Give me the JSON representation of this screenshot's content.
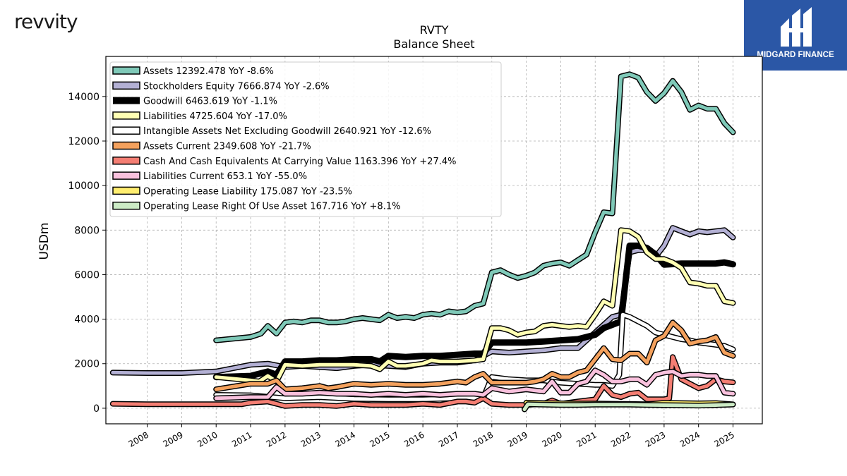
{
  "brand": {
    "left_logo_text": "revvity",
    "right_logo_text": "MIDGARD FINANCE",
    "right_logo_bg": "#2b57a6"
  },
  "chart_data": {
    "type": "line",
    "title": "RVTY",
    "subtitle": "Balance  Sheet",
    "ylabel": "USDm",
    "xlabel": "",
    "ylim": [
      -700,
      15800
    ],
    "xlim": [
      2006.8,
      2025.85
    ],
    "yticks": [
      0,
      2000,
      4000,
      6000,
      8000,
      10000,
      12000,
      14000
    ],
    "xticks": [
      2008,
      2009,
      2010,
      2011,
      2012,
      2013,
      2014,
      2015,
      2016,
      2017,
      2018,
      2019,
      2020,
      2021,
      2022,
      2023,
      2024,
      2025
    ],
    "grid": true,
    "legend_position": "top-left",
    "series": [
      {
        "name": "Assets",
        "legend": "Assets  12392.478 YoY -8.6%",
        "color": "#7fc9b8",
        "width": 5,
        "x": [
          2010.0,
          2011.0,
          2011.3,
          2011.5,
          2011.75,
          2012.0,
          2012.25,
          2012.5,
          2012.75,
          2013.0,
          2013.25,
          2013.5,
          2013.75,
          2014.0,
          2014.25,
          2014.5,
          2014.75,
          2015.0,
          2015.25,
          2015.5,
          2015.75,
          2016.0,
          2016.25,
          2016.5,
          2016.75,
          2017.0,
          2017.25,
          2017.5,
          2017.75,
          2018.0,
          2018.25,
          2018.5,
          2018.75,
          2019.0,
          2019.25,
          2019.5,
          2019.75,
          2020.0,
          2020.25,
          2020.5,
          2020.75,
          2021.0,
          2021.25,
          2021.5,
          2021.75,
          2022.0,
          2022.25,
          2022.5,
          2022.75,
          2023.0,
          2023.25,
          2023.5,
          2023.75,
          2024.0,
          2024.25,
          2024.5,
          2024.75,
          2025.0
        ],
        "y": [
          3050,
          3200,
          3350,
          3700,
          3350,
          3850,
          3900,
          3850,
          3950,
          3950,
          3850,
          3850,
          3900,
          4000,
          4050,
          4000,
          3950,
          4200,
          4050,
          4100,
          4050,
          4200,
          4250,
          4200,
          4350,
          4300,
          4350,
          4600,
          4700,
          6100,
          6200,
          6000,
          5850,
          5950,
          6100,
          6400,
          6500,
          6550,
          6400,
          6650,
          6900,
          7900,
          8800,
          8750,
          14900,
          15000,
          14850,
          14200,
          13800,
          14150,
          14700,
          14200,
          13400,
          13600,
          13450,
          13450,
          12800,
          12392
        ]
      },
      {
        "name": "Stockholders Equity",
        "legend": "Stockholders Equity  7666.874 YoY -2.6%",
        "color": "#b3b0d4",
        "width": 5,
        "x": [
          2007.0,
          2008.0,
          2009.0,
          2010.0,
          2011.0,
          2011.5,
          2012.0,
          2012.5,
          2013.0,
          2013.5,
          2014.0,
          2014.5,
          2015.0,
          2015.5,
          2016.0,
          2016.5,
          2017.0,
          2017.5,
          2018.0,
          2018.5,
          2019.0,
          2019.5,
          2020.0,
          2020.5,
          2021.0,
          2021.5,
          2021.75,
          2022.0,
          2022.25,
          2022.5,
          2022.75,
          2023.0,
          2023.25,
          2023.5,
          2023.75,
          2024.0,
          2024.25,
          2024.5,
          2024.75,
          2025.0
        ],
        "y": [
          1600,
          1580,
          1580,
          1650,
          1950,
          2000,
          1850,
          1900,
          1850,
          1800,
          1900,
          1950,
          1900,
          1850,
          2000,
          2050,
          2050,
          2150,
          2550,
          2500,
          2550,
          2600,
          2700,
          2700,
          3400,
          4100,
          4200,
          7000,
          7100,
          7100,
          6800,
          7300,
          8100,
          7950,
          7800,
          7950,
          7900,
          7950,
          8000,
          7666
        ]
      },
      {
        "name": "Goodwill",
        "legend": "Goodwill  6463.619 YoY -1.1%",
        "color": "#000000",
        "width": 9,
        "x": [
          2010.0,
          2011.0,
          2011.5,
          2011.75,
          2012.0,
          2012.5,
          2013.0,
          2013.5,
          2014.0,
          2014.5,
          2014.75,
          2015.0,
          2015.5,
          2016.0,
          2016.5,
          2017.0,
          2017.5,
          2017.75,
          2018.0,
          2018.5,
          2019.0,
          2019.5,
          2020.0,
          2020.5,
          2021.0,
          2021.25,
          2021.5,
          2021.75,
          2022.0,
          2022.25,
          2022.5,
          2022.75,
          2023.0,
          2023.5,
          2024.0,
          2024.5,
          2024.75,
          2025.0
        ],
        "y": [
          1400,
          1450,
          1650,
          1500,
          2100,
          2100,
          2150,
          2150,
          2200,
          2200,
          2100,
          2350,
          2300,
          2350,
          2350,
          2400,
          2450,
          2450,
          2950,
          2950,
          2950,
          3000,
          3050,
          3100,
          3300,
          3600,
          3750,
          3900,
          7300,
          7300,
          7200,
          6900,
          6450,
          6500,
          6500,
          6500,
          6550,
          6463
        ]
      },
      {
        "name": "Liabilities",
        "legend": "Liabilities  4725.604 YoY -17.0%",
        "color": "#ffffb3",
        "width": 5,
        "x": [
          2010.0,
          2011.0,
          2011.25,
          2011.5,
          2011.75,
          2012.0,
          2012.5,
          2013.0,
          2013.5,
          2014.0,
          2014.5,
          2014.75,
          2015.0,
          2015.25,
          2015.5,
          2016.0,
          2016.25,
          2016.5,
          2017.0,
          2017.5,
          2017.75,
          2018.0,
          2018.25,
          2018.5,
          2018.75,
          2019.0,
          2019.25,
          2019.5,
          2019.75,
          2020.0,
          2020.25,
          2020.5,
          2020.75,
          2021.0,
          2021.25,
          2021.5,
          2021.75,
          2022.0,
          2022.25,
          2022.5,
          2022.75,
          2023.0,
          2023.25,
          2023.5,
          2023.75,
          2024.0,
          2024.25,
          2024.5,
          2024.75,
          2025.0
        ],
        "y": [
          1400,
          1250,
          1200,
          1450,
          1200,
          1950,
          1900,
          1950,
          1950,
          1950,
          1900,
          1750,
          2100,
          1900,
          1900,
          2000,
          2150,
          2100,
          2100,
          2150,
          2200,
          3600,
          3600,
          3500,
          3300,
          3400,
          3450,
          3700,
          3750,
          3700,
          3650,
          3700,
          3650,
          4200,
          4800,
          4600,
          8000,
          7950,
          7700,
          7000,
          6700,
          6700,
          6550,
          6300,
          5650,
          5600,
          5500,
          5500,
          4800,
          4725
        ]
      },
      {
        "name": "Intangible Assets Net Excluding Goodwill",
        "legend": "Intangible Assets Net Excluding Goodwill  2640.921 YoY -12.6%",
        "color": "#ffffff",
        "width": 5,
        "x": [
          2010.0,
          2011.0,
          2012.0,
          2013.0,
          2014.0,
          2015.0,
          2016.0,
          2017.0,
          2017.75,
          2018.0,
          2018.5,
          2019.0,
          2019.5,
          2020.0,
          2020.5,
          2021.0,
          2021.25,
          2021.5,
          2021.7,
          2021.8,
          2022.0,
          2022.25,
          2022.5,
          2022.75,
          2023.0,
          2023.25,
          2023.5,
          2023.75,
          2024.0,
          2024.25,
          2024.5,
          2024.75,
          2025.0
        ],
        "y": [
          600,
          580,
          450,
          500,
          420,
          400,
          400,
          450,
          470,
          1400,
          1300,
          1250,
          1250,
          1150,
          1100,
          1050,
          1050,
          1000,
          1500,
          4200,
          4100,
          3900,
          3700,
          3400,
          3300,
          3200,
          3100,
          3050,
          2950,
          2900,
          2850,
          2800,
          2640
        ]
      },
      {
        "name": "Assets Current",
        "legend": "Assets Current  2349.608 YoY -21.7%",
        "color": "#f4a15d",
        "width": 5,
        "x": [
          2010.0,
          2011.0,
          2011.5,
          2011.75,
          2012.0,
          2012.5,
          2013.0,
          2013.25,
          2013.5,
          2014.0,
          2014.5,
          2015.0,
          2015.5,
          2016.0,
          2016.5,
          2017.0,
          2017.25,
          2017.5,
          2017.75,
          2018.0,
          2018.5,
          2019.0,
          2019.25,
          2019.5,
          2019.75,
          2020.0,
          2020.25,
          2020.5,
          2020.75,
          2021.0,
          2021.25,
          2021.5,
          2021.75,
          2022.0,
          2022.25,
          2022.5,
          2022.75,
          2023.0,
          2023.25,
          2023.5,
          2023.75,
          2024.0,
          2024.25,
          2024.5,
          2024.75,
          2025.0
        ],
        "y": [
          850,
          1100,
          1100,
          1250,
          850,
          900,
          1000,
          900,
          950,
          1100,
          1050,
          1100,
          1050,
          1050,
          1100,
          1200,
          1150,
          1400,
          1550,
          1150,
          1150,
          1150,
          1200,
          1300,
          1550,
          1400,
          1400,
          1600,
          1700,
          2200,
          2700,
          2200,
          2150,
          2450,
          2450,
          2050,
          3050,
          3250,
          3850,
          3500,
          2900,
          3000,
          3050,
          3200,
          2500,
          2349
        ]
      },
      {
        "name": "Cash And Cash Equivalents At Carrying Value",
        "legend": "Cash And Cash Equivalents At Carrying Value  1163.396 YoY +27.4%",
        "color": "#f47e73",
        "width": 5,
        "x": [
          2007.0,
          2008.0,
          2009.0,
          2010.0,
          2010.75,
          2011.0,
          2011.5,
          2012.0,
          2012.5,
          2013.0,
          2013.5,
          2014.0,
          2014.5,
          2015.0,
          2015.5,
          2016.0,
          2016.5,
          2017.0,
          2017.25,
          2017.5,
          2017.75,
          2018.0,
          2018.5,
          2019.0,
          2019.5,
          2019.75,
          2020.0,
          2020.5,
          2021.0,
          2021.25,
          2021.5,
          2021.75,
          2022.0,
          2022.25,
          2022.5,
          2022.75,
          2023.0,
          2023.15,
          2023.25,
          2023.5,
          2023.75,
          2024.0,
          2024.25,
          2024.5,
          2024.75,
          2025.0
        ],
        "y": [
          200,
          180,
          180,
          180,
          180,
          250,
          300,
          100,
          150,
          150,
          100,
          200,
          150,
          150,
          150,
          200,
          150,
          300,
          300,
          250,
          450,
          200,
          150,
          150,
          200,
          350,
          200,
          300,
          400,
          1000,
          600,
          500,
          650,
          700,
          400,
          400,
          400,
          450,
          2300,
          1300,
          1100,
          900,
          1000,
          1300,
          1200,
          1163
        ]
      },
      {
        "name": "Liabilities Current",
        "legend": "Liabilities Current  653.1 YoY -55.0%",
        "color": "#f9c1dd",
        "width": 5,
        "x": [
          2010.0,
          2011.0,
          2011.5,
          2011.75,
          2012.0,
          2012.5,
          2013.0,
          2013.5,
          2014.0,
          2014.5,
          2015.0,
          2015.5,
          2016.0,
          2016.5,
          2017.0,
          2017.5,
          2017.75,
          2018.0,
          2018.5,
          2019.0,
          2019.5,
          2019.75,
          2020.0,
          2020.25,
          2020.5,
          2020.75,
          2021.0,
          2021.25,
          2021.5,
          2021.75,
          2022.0,
          2022.25,
          2022.5,
          2022.75,
          2023.0,
          2023.25,
          2023.5,
          2023.75,
          2024.0,
          2024.25,
          2024.5,
          2024.75,
          2025.0
        ],
        "y": [
          450,
          500,
          500,
          950,
          650,
          650,
          700,
          650,
          650,
          600,
          650,
          600,
          650,
          600,
          650,
          650,
          600,
          900,
          750,
          850,
          750,
          1200,
          700,
          700,
          1100,
          1200,
          1700,
          1500,
          1200,
          1200,
          1300,
          1300,
          1050,
          1500,
          1600,
          1650,
          1450,
          1500,
          1500,
          1450,
          1450,
          700,
          653
        ]
      },
      {
        "name": "Operating Lease Liability",
        "legend": "Operating Lease Liability  175.087 YoY -23.5%",
        "color": "#ffed6f",
        "width": 5,
        "x": [
          2019.0,
          2019.5,
          2020.0,
          2020.5,
          2021.0,
          2021.5,
          2022.0,
          2022.5,
          2023.0,
          2023.5,
          2024.0,
          2024.5,
          2025.0
        ],
        "y": [
          250,
          230,
          220,
          210,
          210,
          200,
          190,
          180,
          240,
          230,
          220,
          230,
          175
        ]
      },
      {
        "name": "Operating Lease Right Of Use Asset",
        "legend": "Operating Lease Right Of Use Asset  167.716 YoY +8.1%",
        "color": "#ccebc5",
        "width": 5,
        "x": [
          2018.95,
          2019.05,
          2019.25,
          2019.5,
          2020.0,
          2020.5,
          2021.0,
          2021.5,
          2022.0,
          2022.5,
          2023.0,
          2023.5,
          2024.0,
          2024.5,
          2025.0
        ],
        "y": [
          -50,
          180,
          170,
          160,
          150,
          150,
          160,
          160,
          160,
          150,
          140,
          130,
          120,
          140,
          167
        ]
      }
    ]
  }
}
